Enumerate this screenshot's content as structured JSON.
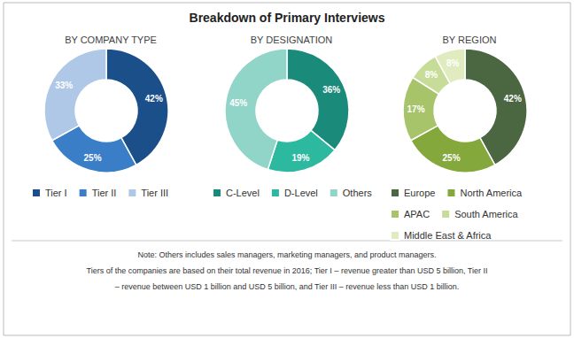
{
  "title": "Breakdown of Primary Interviews",
  "chart_data": [
    {
      "type": "pie",
      "title": "BY COMPANY TYPE",
      "categories": [
        "Tier I",
        "Tier II",
        "Tier III"
      ],
      "values": [
        42,
        25,
        33
      ],
      "value_labels": [
        "42%",
        "25%",
        "33%"
      ],
      "colors": [
        "#1A4F8A",
        "#3A7EC8",
        "#AFC8E8"
      ],
      "data_labels": true,
      "legend": "bottom"
    },
    {
      "type": "pie",
      "title": "BY DESIGNATION",
      "categories": [
        "C-Level",
        "D-Level",
        "Others"
      ],
      "values": [
        36,
        19,
        45
      ],
      "value_labels": [
        "36%",
        "19%",
        "45%"
      ],
      "colors": [
        "#1A8A7A",
        "#2DB8A0",
        "#90D5C8"
      ],
      "data_labels": true,
      "legend": "bottom"
    },
    {
      "type": "pie",
      "title": "BY REGION",
      "categories": [
        "Europe",
        "North America",
        "APAC",
        "South America",
        "Middle East & Africa"
      ],
      "values": [
        42,
        25,
        17,
        8,
        8
      ],
      "value_labels": [
        "42%",
        "25%",
        "17%",
        "8%",
        "8%"
      ],
      "colors": [
        "#4A6741",
        "#85A83C",
        "#A8C46A",
        "#C8DC9A",
        "#E0ECC0"
      ],
      "data_labels": true,
      "legend": "bottom"
    }
  ],
  "annotations": [
    "Note: Others includes sales managers, marketing managers, and product managers.",
    "Tiers of the companies are based on their total revenue in 2016; Tier I – revenue greater than USD 5 billion, Tier II",
    "– revenue between USD 1 billion and USD 5 billion, and Tier III – revenue less than USD 1 billion."
  ]
}
